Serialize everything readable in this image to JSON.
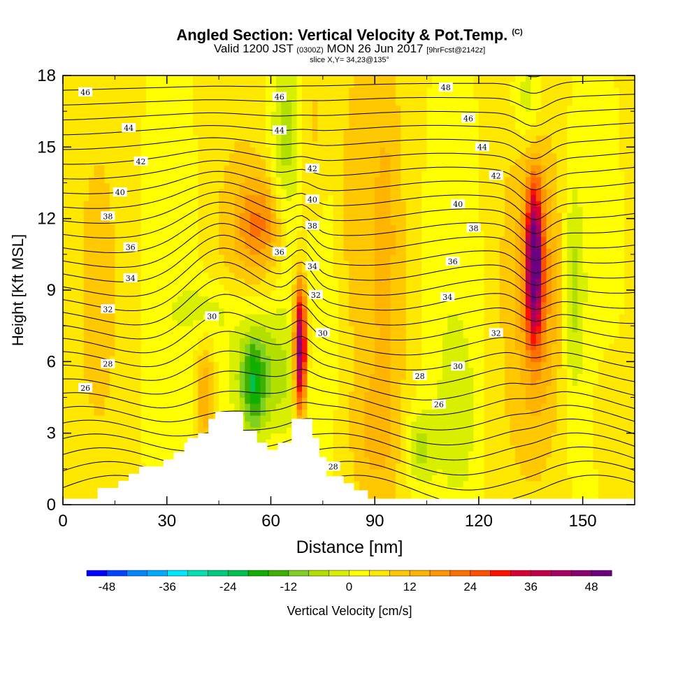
{
  "title": {
    "main": "Angled Section: Vertical Velocity & Pot.Temp.",
    "main_tag": "(C)",
    "valid_prefix": "Valid 1200 JST",
    "valid_z": "(0300Z)",
    "valid_date": "MON 26 Jun 2017",
    "valid_fcst": "[9hrFcst@2142z]",
    "slice": "slice X,Y= 34,23@135°"
  },
  "chart_data": {
    "type": "heatmap",
    "xlabel": "Distance [nm]",
    "ylabel": "Height [Kft MSL]",
    "xlim": [
      0,
      165
    ],
    "ylim": [
      0,
      18
    ],
    "xticks": [
      0,
      30,
      60,
      90,
      120,
      150
    ],
    "yticks": [
      0,
      3,
      6,
      9,
      12,
      15,
      18
    ],
    "colorbar": {
      "label": "Vertical Velocity [cm/s]",
      "ticks": [
        -48,
        -36,
        -24,
        -12,
        0,
        12,
        24,
        36,
        48
      ],
      "min": -52,
      "max": 52,
      "step": 4,
      "colors": [
        "#0000ff",
        "#0044ff",
        "#0088ff",
        "#00aaff",
        "#00e8ff",
        "#00e0b0",
        "#00cc80",
        "#00c050",
        "#10b000",
        "#40b000",
        "#80d020",
        "#b4e000",
        "#d8f000",
        "#ffff00",
        "#ffe800",
        "#ffc800",
        "#ffb400",
        "#ff9600",
        "#ff7000",
        "#ff5000",
        "#ff1000",
        "#d80030",
        "#c00048",
        "#a80060",
        "#8c0070",
        "#6c0080"
      ]
    },
    "velocity_features": [
      {
        "x": 68.5,
        "y_bottom": 4.5,
        "y_top": 9.5,
        "peak": 52,
        "kind": "updraft"
      },
      {
        "x": 136,
        "y_bottom": 7,
        "y_top": 13.2,
        "peak": 48,
        "kind": "updraft"
      },
      {
        "x": 55,
        "y_bottom": 3.5,
        "y_top": 6.5,
        "peak": -26,
        "kind": "downdraft"
      },
      {
        "x": 57,
        "y_bottom": 10.5,
        "y_top": 13,
        "peak": 18,
        "kind": "updraft"
      },
      {
        "x": 72,
        "y_bottom": 12,
        "y_top": 18,
        "peak": 16,
        "kind": "updraft"
      }
    ],
    "terrain_profile": [
      [
        0,
        0.25
      ],
      [
        10,
        0.25
      ],
      [
        10,
        0.7
      ],
      [
        16,
        0.7
      ],
      [
        16,
        1.0
      ],
      [
        19,
        1.0
      ],
      [
        19,
        1.3
      ],
      [
        22,
        1.3
      ],
      [
        22,
        1.6
      ],
      [
        29,
        1.6
      ],
      [
        29,
        1.9
      ],
      [
        32,
        1.9
      ],
      [
        32,
        2.2
      ],
      [
        35,
        2.2
      ],
      [
        35,
        2.6
      ],
      [
        36,
        2.6
      ],
      [
        36,
        2.8
      ],
      [
        39,
        2.8
      ],
      [
        39,
        3.0
      ],
      [
        42,
        3.0
      ],
      [
        42,
        3.6
      ],
      [
        44,
        3.6
      ],
      [
        44,
        3.9
      ],
      [
        52,
        3.9
      ],
      [
        52,
        3.1
      ],
      [
        56,
        3.1
      ],
      [
        56,
        2.6
      ],
      [
        59,
        2.6
      ],
      [
        59,
        2.3
      ],
      [
        62,
        2.3
      ],
      [
        62,
        2.6
      ],
      [
        66,
        2.6
      ],
      [
        66,
        3.6
      ],
      [
        72,
        3.6
      ],
      [
        72,
        2.8
      ],
      [
        74,
        2.8
      ],
      [
        74,
        2.0
      ],
      [
        76,
        2.0
      ],
      [
        76,
        1.2
      ],
      [
        81,
        1.2
      ],
      [
        81,
        0.9
      ],
      [
        84,
        0.9
      ],
      [
        84,
        0.6
      ],
      [
        88,
        0.6
      ],
      [
        88,
        0.25
      ],
      [
        165,
        0.25
      ]
    ],
    "theta_labels": [
      {
        "text": "46",
        "x": 6.5,
        "y": 17.3
      },
      {
        "text": "44",
        "x": 19,
        "y": 15.8
      },
      {
        "text": "42",
        "x": 22.5,
        "y": 14.4
      },
      {
        "text": "40",
        "x": 16.5,
        "y": 13.1
      },
      {
        "text": "38",
        "x": 13,
        "y": 12.1
      },
      {
        "text": "36",
        "x": 19.5,
        "y": 10.8
      },
      {
        "text": "34",
        "x": 19.5,
        "y": 9.5
      },
      {
        "text": "32",
        "x": 13,
        "y": 8.2
      },
      {
        "text": "28",
        "x": 13,
        "y": 5.9
      },
      {
        "text": "26",
        "x": 6.5,
        "y": 4.9
      },
      {
        "text": "30",
        "x": 43,
        "y": 7.9
      },
      {
        "text": "46",
        "x": 62.5,
        "y": 17.1
      },
      {
        "text": "44",
        "x": 62.5,
        "y": 15.7
      },
      {
        "text": "42",
        "x": 72,
        "y": 14.1
      },
      {
        "text": "40",
        "x": 72,
        "y": 12.8
      },
      {
        "text": "38",
        "x": 72,
        "y": 11.7
      },
      {
        "text": "36",
        "x": 62.5,
        "y": 10.6
      },
      {
        "text": "34",
        "x": 72,
        "y": 10.0
      },
      {
        "text": "32",
        "x": 73,
        "y": 8.8
      },
      {
        "text": "30",
        "x": 75,
        "y": 7.2
      },
      {
        "text": "48",
        "x": 110.5,
        "y": 17.5
      },
      {
        "text": "46",
        "x": 117,
        "y": 16.2
      },
      {
        "text": "44",
        "x": 121,
        "y": 15.0
      },
      {
        "text": "42",
        "x": 125,
        "y": 13.8
      },
      {
        "text": "40",
        "x": 114,
        "y": 12.6
      },
      {
        "text": "38",
        "x": 118.5,
        "y": 11.6
      },
      {
        "text": "36",
        "x": 112.5,
        "y": 10.2
      },
      {
        "text": "34",
        "x": 111,
        "y": 8.7
      },
      {
        "text": "32",
        "x": 125,
        "y": 7.2
      },
      {
        "text": "30",
        "x": 114,
        "y": 5.8
      },
      {
        "text": "28",
        "x": 103,
        "y": 5.4
      },
      {
        "text": "26",
        "x": 108.5,
        "y": 4.2
      },
      {
        "text": "28",
        "x": 78,
        "y": 1.6
      }
    ]
  }
}
